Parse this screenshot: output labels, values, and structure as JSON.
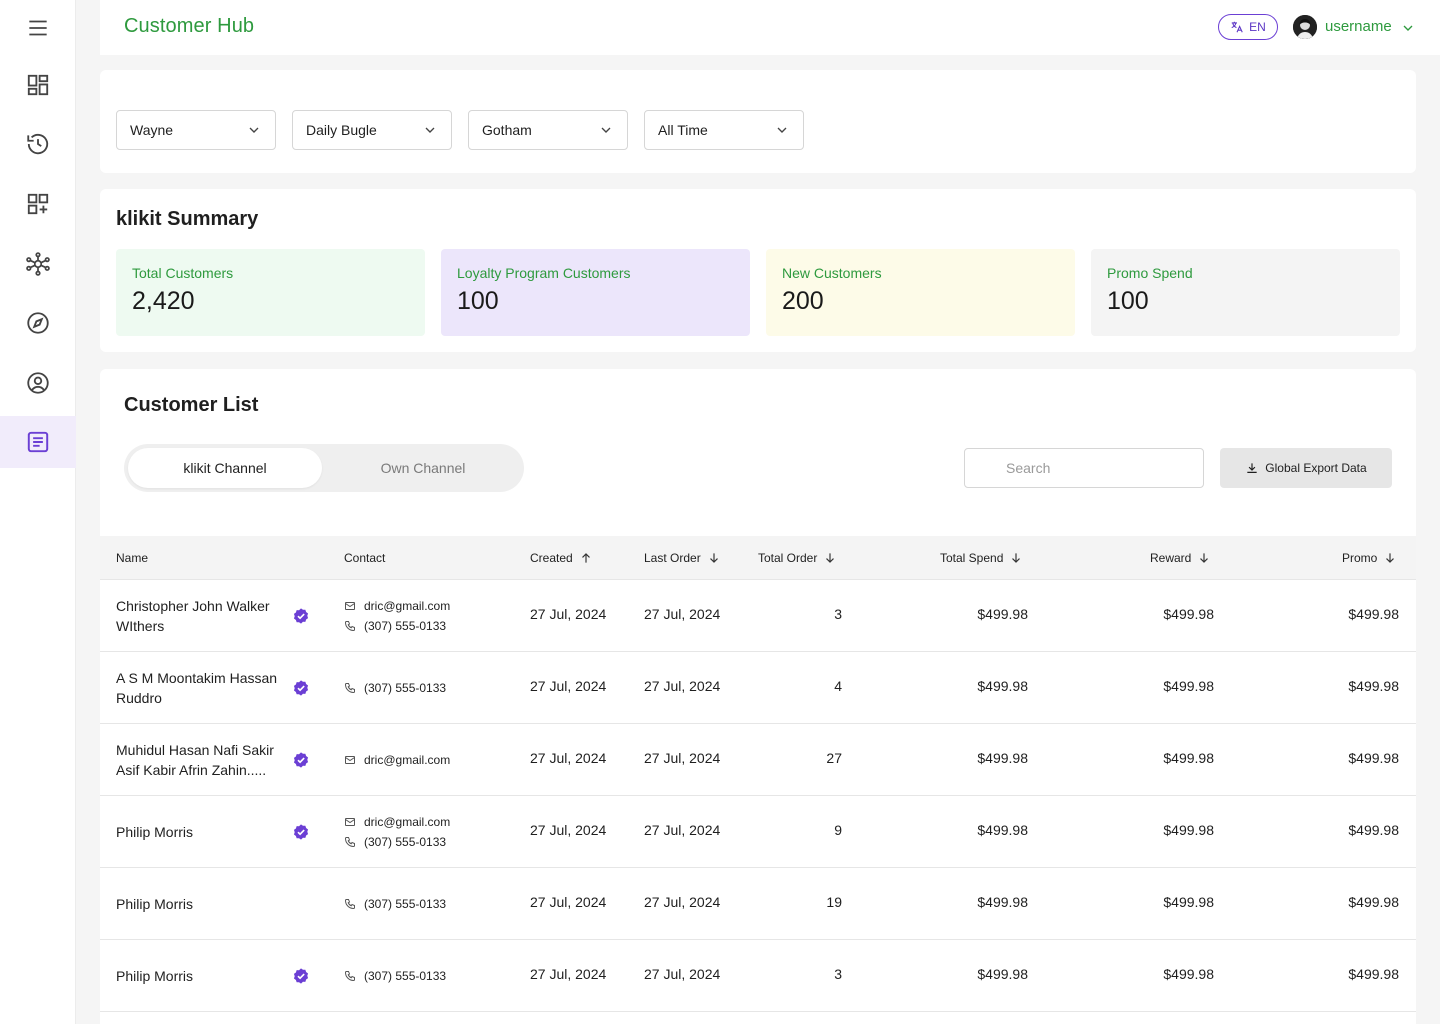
{
  "app": {
    "title": "Customer Hub"
  },
  "header": {
    "lang": "EN",
    "username": "username"
  },
  "sidebar": {
    "items": [
      {
        "icon": "menu-icon"
      },
      {
        "icon": "dashboard-icon"
      },
      {
        "icon": "history-icon"
      },
      {
        "icon": "add-grid-icon"
      },
      {
        "icon": "network-icon"
      },
      {
        "icon": "compass-icon"
      },
      {
        "icon": "user-circle-icon"
      },
      {
        "icon": "list-document-icon",
        "active": true
      }
    ],
    "accent": "#6b3fd4"
  },
  "filters": [
    "Wayne",
    "Daily Bugle",
    "Gotham",
    "All Time"
  ],
  "summary": {
    "title": "klikit Summary",
    "stats": [
      {
        "label": "Total Customers",
        "value": "2,420",
        "bg": "#eefaf1"
      },
      {
        "label": "Loyalty Program Customers",
        "value": "100",
        "bg": "#ece6fb"
      },
      {
        "label": "New Customers",
        "value": "200",
        "bg": "#fdfbe8"
      },
      {
        "label": "Promo Spend",
        "value": "100",
        "bg": "#f4f4f4"
      }
    ]
  },
  "customer_list": {
    "title": "Customer List",
    "tabs": [
      "klikit Channel",
      "Own Channel"
    ],
    "search_placeholder": "Search",
    "export_label": "Global Export Data",
    "columns": {
      "name": "Name",
      "contact": "Contact",
      "created": "Created",
      "last_order": "Last Order",
      "total_order": "Total Order",
      "total_spend": "Total Spend",
      "reward": "Reward",
      "promo": "Promo"
    },
    "rows": [
      {
        "name": "Christopher John Walker WIthers",
        "verified": true,
        "email": "dric@gmail.com",
        "phone": "(307) 555-0133",
        "created": "27 Jul, 2024",
        "last_order": "27 Jul, 2024",
        "total_order": "3",
        "total_spend": "$499.98",
        "reward": "$499.98",
        "promo": "$499.98"
      },
      {
        "name": "A S M Moontakim Hassan Ruddro",
        "verified": true,
        "email": "",
        "phone": "(307) 555-0133",
        "created": "27 Jul, 2024",
        "last_order": "27 Jul, 2024",
        "total_order": "4",
        "total_spend": "$499.98",
        "reward": "$499.98",
        "promo": "$499.98"
      },
      {
        "name": "Muhidul Hasan Nafi Sakir Asif Kabir Afrin Zahin.....",
        "verified": true,
        "email": "dric@gmail.com",
        "phone": "",
        "created": "27 Jul, 2024",
        "last_order": "27 Jul, 2024",
        "total_order": "27",
        "total_spend": "$499.98",
        "reward": "$499.98",
        "promo": "$499.98"
      },
      {
        "name": "Philip Morris",
        "verified": true,
        "email": "dric@gmail.com",
        "phone": "(307) 555-0133",
        "created": "27 Jul, 2024",
        "last_order": "27 Jul, 2024",
        "total_order": "9",
        "total_spend": "$499.98",
        "reward": "$499.98",
        "promo": "$499.98"
      },
      {
        "name": "Philip Morris",
        "verified": false,
        "email": "",
        "phone": "(307) 555-0133",
        "created": "27 Jul, 2024",
        "last_order": "27 Jul, 2024",
        "total_order": "19",
        "total_spend": "$499.98",
        "reward": "$499.98",
        "promo": "$499.98"
      },
      {
        "name": "Philip Morris",
        "verified": true,
        "email": "",
        "phone": "(307) 555-0133",
        "created": "27 Jul, 2024",
        "last_order": "27 Jul, 2024",
        "total_order": "3",
        "total_spend": "$499.98",
        "reward": "$499.98",
        "promo": "$499.98"
      }
    ]
  },
  "colors": {
    "brand_green": "#2e9a3e",
    "purple": "#6b3fd4"
  }
}
